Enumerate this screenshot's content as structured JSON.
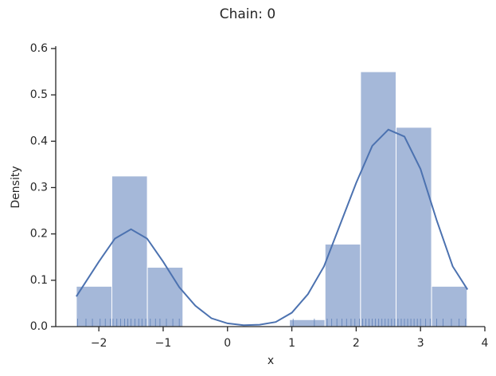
{
  "chart_data": {
    "type": "histogram",
    "title": "Chain: 0",
    "x_label": "x",
    "y_label": "Density",
    "bins": [
      -2.35,
      -1.798,
      -1.246,
      -0.693,
      -0.141,
      0.411,
      0.963,
      1.516,
      2.068,
      2.62,
      3.172,
      3.725
    ],
    "values": [
      0.087,
      0.325,
      0.128,
      0,
      0,
      0,
      0.015,
      0.178,
      0.55,
      0.43,
      0.087
    ],
    "color": "#a5b8d9",
    "kde": {
      "color": "#4c72b0",
      "x": [
        -2.35,
        -2.0,
        -1.75,
        -1.5,
        -1.25,
        -1.0,
        -0.75,
        -0.5,
        -0.25,
        0,
        0.25,
        0.5,
        0.75,
        1.0,
        1.25,
        1.5,
        1.75,
        2.0,
        2.25,
        2.5,
        2.75,
        3.0,
        3.25,
        3.5,
        3.73
      ],
      "values": [
        0.065,
        0.14,
        0.19,
        0.21,
        0.19,
        0.14,
        0.085,
        0.045,
        0.018,
        0.007,
        0.003,
        0.004,
        0.01,
        0.03,
        0.07,
        0.13,
        0.22,
        0.31,
        0.39,
        0.425,
        0.41,
        0.34,
        0.23,
        0.13,
        0.08
      ]
    },
    "rug": {
      "color": "#4c72b0",
      "x": [
        -2.33,
        -2.2,
        -2.1,
        -1.98,
        -1.9,
        -1.82,
        -1.78,
        -1.72,
        -1.66,
        -1.6,
        -1.55,
        -1.5,
        -1.44,
        -1.38,
        -1.33,
        -1.27,
        -1.2,
        -1.12,
        -1.05,
        -0.95,
        -0.85,
        -0.75,
        1.02,
        1.35,
        1.55,
        1.62,
        1.7,
        1.78,
        1.85,
        1.92,
        1.98,
        2.05,
        2.1,
        2.15,
        2.2,
        2.25,
        2.3,
        2.35,
        2.4,
        2.45,
        2.5,
        2.55,
        2.6,
        2.65,
        2.7,
        2.75,
        2.8,
        2.85,
        2.9,
        2.95,
        3.0,
        3.08,
        3.15,
        3.25,
        3.35,
        3.48,
        3.6,
        3.7
      ]
    },
    "xlim": [
      -2.67,
      4.0
    ],
    "ylim": [
      0,
      0.605
    ],
    "xticks": [
      {
        "value": -2,
        "label": "−2"
      },
      {
        "value": -1,
        "label": "−1"
      },
      0,
      1,
      2,
      3,
      4
    ],
    "yticks": [
      {
        "value": 0,
        "label": "0.0"
      },
      {
        "value": 0.1,
        "label": "0.1"
      },
      {
        "value": 0.2,
        "label": "0.2"
      },
      {
        "value": 0.3,
        "label": "0.3"
      },
      {
        "value": 0.4,
        "label": "0.4"
      },
      {
        "value": 0.5,
        "label": "0.5"
      },
      {
        "value": 0.6,
        "label": "0.6"
      }
    ]
  }
}
